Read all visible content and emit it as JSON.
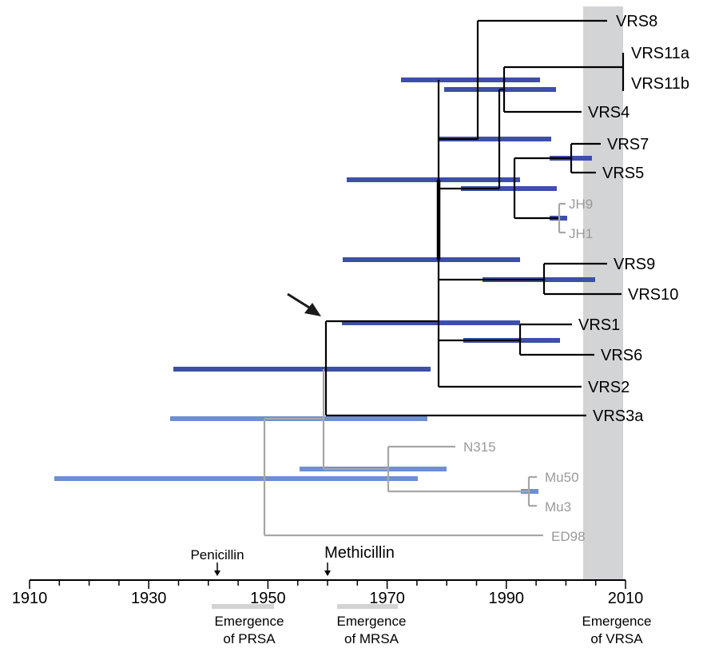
{
  "colors": {
    "black_branch": "#000000",
    "gray_branch": "#a6a6a6",
    "gray_label": "#9a9a9a",
    "dark_bar": "#3d4fa8",
    "light_bar": "#6e8fd2",
    "vrsa_band": "#d3d4d6",
    "emergence_bar": "#d3d3d3",
    "arrow": "#1a1a1a"
  },
  "axis": {
    "min_year": 1910,
    "max_year": 2010,
    "major_ticks": [
      1910,
      1930,
      1950,
      1970,
      1990,
      2010
    ],
    "minor_step": 5
  },
  "taxa": {
    "vrs8": "VRS8",
    "vrs11a": "VRS11a",
    "vrs11b": "VRS11b",
    "vrs4": "VRS4",
    "vrs7": "VRS7",
    "vrs5": "VRS5",
    "jh9": "JH9",
    "jh1": "JH1",
    "vrs9": "VRS9",
    "vrs10": "VRS10",
    "vrs1": "VRS1",
    "vrs6": "VRS6",
    "vrs2": "VRS2",
    "vrs3a": "VRS3a",
    "n315": "N315",
    "mu50": "Mu50",
    "mu3": "Mu3",
    "ed98": "ED98"
  },
  "markers": {
    "penicillin": "Penicillin",
    "methicillin": "Methicillin"
  },
  "emergence": {
    "prsa_line1": "Emergence",
    "prsa_line2": "of PRSA",
    "mrsa_line1": "Emergence",
    "mrsa_line2": "of MRSA",
    "vrsa_line1": "Emergence",
    "vrsa_line2": "of VRSA"
  }
}
